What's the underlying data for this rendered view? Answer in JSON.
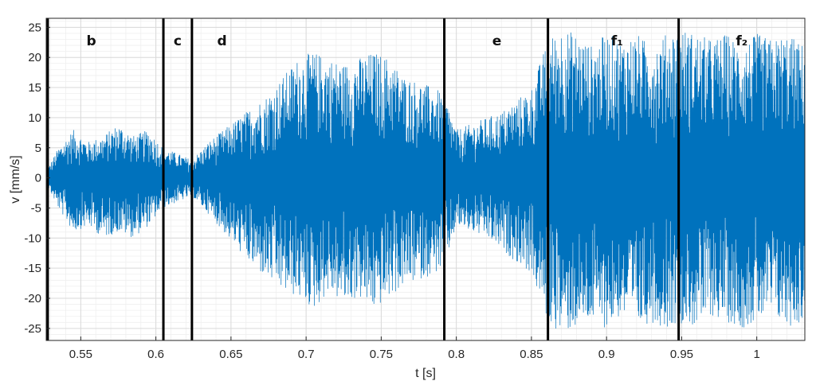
{
  "chart_data": {
    "type": "line",
    "title": "",
    "xlabel": "t [s]",
    "ylabel": "v [mm/s]",
    "xlim": [
      0.527,
      1.032
    ],
    "ylim": [
      -27,
      26.5
    ],
    "xticks": [
      0.55,
      0.6,
      0.65,
      0.7,
      0.75,
      0.8,
      0.85,
      0.9,
      0.95,
      1
    ],
    "xtick_labels": [
      "0.55",
      "0.6",
      "0.65",
      "0.7",
      "0.75",
      "0.8",
      "0.85",
      "0.9",
      "0.95",
      "1"
    ],
    "yticks": [
      25,
      20,
      15,
      10,
      5,
      0,
      -5,
      -10,
      -15,
      -20,
      -25
    ],
    "ytick_labels": [
      "25",
      "20",
      "15",
      "10",
      "5",
      "0",
      "-5",
      "-10",
      "-15",
      "-20",
      "-25"
    ],
    "grid": true,
    "minor_grid": true,
    "line_color": "#0072bd",
    "boundary_color": "#000000",
    "phase_boundaries": [
      0.528,
      0.605,
      0.624,
      0.792,
      0.861,
      0.948
    ],
    "phase_labels": [
      {
        "text": "b",
        "x": 0.557
      },
      {
        "text": "c",
        "x": 0.6145
      },
      {
        "text": "d",
        "x": 0.644
      },
      {
        "text": "e",
        "x": 0.827
      },
      {
        "text": "f₁",
        "x": 0.907
      },
      {
        "text": "f₂",
        "x": 0.99
      }
    ],
    "envelope": {
      "t": [
        0.527,
        0.535,
        0.545,
        0.555,
        0.565,
        0.575,
        0.585,
        0.595,
        0.605,
        0.615,
        0.624,
        0.635,
        0.645,
        0.655,
        0.665,
        0.675,
        0.685,
        0.695,
        0.705,
        0.715,
        0.725,
        0.735,
        0.745,
        0.755,
        0.765,
        0.775,
        0.785,
        0.792,
        0.8,
        0.81,
        0.82,
        0.83,
        0.84,
        0.85,
        0.861,
        0.87,
        0.88,
        0.89,
        0.9,
        0.91,
        0.92,
        0.93,
        0.94,
        0.948,
        0.96,
        0.97,
        0.98,
        0.99,
        1.0,
        1.01,
        1.02,
        1.032
      ],
      "upper": [
        1,
        5,
        8,
        6,
        7,
        9,
        7,
        8,
        5,
        4,
        3,
        6,
        8,
        10,
        12,
        14,
        17,
        20,
        21,
        20,
        19,
        20,
        21,
        20,
        17,
        16,
        15,
        14,
        8,
        9,
        10,
        11,
        13,
        15,
        23,
        25,
        24,
        22,
        24,
        23,
        24,
        22,
        24,
        25,
        24,
        23,
        24,
        22,
        24,
        23,
        24,
        22
      ],
      "lower": [
        -1,
        -5,
        -9,
        -8,
        -10,
        -9,
        -10,
        -8,
        -5,
        -4,
        -3,
        -6,
        -9,
        -12,
        -15,
        -17,
        -19,
        -20,
        -22,
        -19,
        -21,
        -20,
        -22,
        -20,
        -18,
        -17,
        -16,
        -15,
        -8,
        -9,
        -10,
        -12,
        -14,
        -16,
        -24,
        -26,
        -25,
        -24,
        -25,
        -23,
        -25,
        -24,
        -25,
        -24,
        -25,
        -23,
        -24,
        -25,
        -24,
        -23,
        -25,
        -24
      ]
    }
  }
}
